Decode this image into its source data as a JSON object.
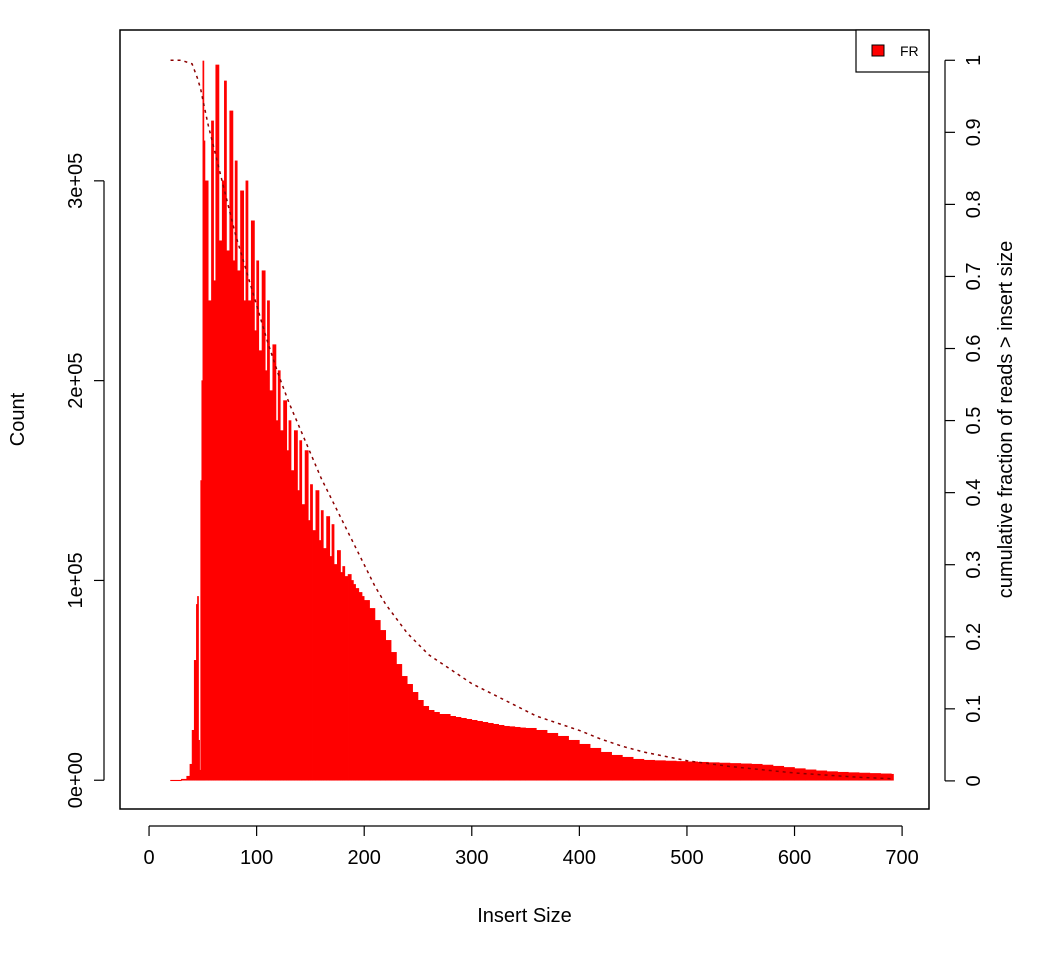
{
  "chart_data": {
    "type": "bar",
    "xlabel": "Insert Size",
    "ylabel": "Count",
    "y2label": "cumulative fraction of reads > insert size",
    "xlim": [
      -27,
      725
    ],
    "ylim": [
      -14400,
      375500
    ],
    "y2lim": [
      -0.039,
      1.042
    ],
    "xticks": [
      0,
      100,
      200,
      300,
      400,
      500,
      600,
      700
    ],
    "yticks": [
      0,
      100000,
      200000,
      300000
    ],
    "ytick_labels": [
      "0e+00",
      "1e+05",
      "2e+05",
      "3e+05"
    ],
    "y2ticks": [
      0,
      0.1,
      0.2,
      0.3,
      0.4,
      0.5,
      0.6,
      0.7,
      0.8,
      0.9,
      1
    ],
    "y2tick_labels": [
      "0",
      "0.1",
      "0.2",
      "0.3",
      "0.4",
      "0.5",
      "0.6",
      "0.7",
      "0.8",
      "0.9",
      "1"
    ],
    "legend": {
      "label": "FR",
      "color": "#ff0000",
      "position": "top-right"
    },
    "histogram": {
      "name": "FR",
      "color": "#ff0000",
      "x": [
        20,
        30,
        35,
        38,
        40,
        42,
        44,
        45,
        46,
        47,
        48,
        49,
        50,
        51,
        52,
        55,
        58,
        60,
        62,
        65,
        68,
        70,
        72,
        75,
        78,
        80,
        82,
        85,
        88,
        90,
        92,
        95,
        98,
        100,
        102,
        105,
        108,
        110,
        112,
        115,
        118,
        120,
        122,
        125,
        128,
        130,
        132,
        135,
        138,
        140,
        142,
        145,
        148,
        150,
        152,
        155,
        158,
        160,
        162,
        165,
        168,
        170,
        172,
        175,
        178,
        180,
        182,
        185,
        188,
        190,
        192,
        195,
        198,
        200,
        205,
        210,
        215,
        220,
        225,
        230,
        235,
        240,
        245,
        250,
        255,
        260,
        265,
        270,
        275,
        280,
        285,
        290,
        295,
        300,
        305,
        310,
        315,
        320,
        325,
        330,
        335,
        340,
        345,
        350,
        360,
        370,
        380,
        390,
        400,
        410,
        420,
        430,
        440,
        450,
        460,
        470,
        480,
        490,
        500,
        510,
        520,
        530,
        540,
        550,
        560,
        570,
        580,
        590,
        600,
        610,
        620,
        630,
        640,
        650,
        660,
        670,
        680,
        690
      ],
      "values": [
        0,
        500,
        2000,
        8000,
        25000,
        60000,
        88000,
        92000,
        20000,
        5000,
        150000,
        200000,
        360000,
        320000,
        300000,
        240000,
        330000,
        250000,
        358000,
        270000,
        300000,
        350000,
        265000,
        335000,
        260000,
        310000,
        255000,
        295000,
        240000,
        300000,
        240000,
        280000,
        225000,
        260000,
        215000,
        255000,
        205000,
        240000,
        195000,
        218000,
        180000,
        205000,
        175000,
        190000,
        165000,
        180000,
        155000,
        175000,
        145000,
        170000,
        138000,
        165000,
        130000,
        148000,
        125000,
        145000,
        120000,
        135000,
        116000,
        132000,
        112000,
        128000,
        108000,
        115000,
        104000,
        107000,
        102000,
        103000,
        100000,
        98000,
        96000,
        94000,
        92000,
        90000,
        86000,
        80000,
        75000,
        70000,
        64000,
        58000,
        52000,
        48000,
        44000,
        40000,
        37000,
        35000,
        34000,
        33000,
        33000,
        32000,
        31500,
        31000,
        30500,
        30000,
        29500,
        29000,
        28500,
        28000,
        27500,
        27000,
        26800,
        26500,
        26200,
        26000,
        25000,
        23500,
        22000,
        20000,
        18000,
        16000,
        14000,
        12500,
        11500,
        10500,
        10000,
        9800,
        9600,
        9400,
        9200,
        9000,
        8800,
        8600,
        8400,
        8200,
        8000,
        7600,
        7000,
        6400,
        5800,
        5200,
        4700,
        4300,
        4000,
        3800,
        3600,
        3400,
        3200,
        3000
      ]
    },
    "cumulative": {
      "name": "cumulative fraction of reads > insert size",
      "color": "#8b0000",
      "style": "dotted",
      "x": [
        20,
        30,
        40,
        45,
        48,
        50,
        55,
        60,
        70,
        80,
        90,
        100,
        110,
        120,
        130,
        140,
        150,
        160,
        170,
        180,
        190,
        200,
        210,
        220,
        230,
        240,
        250,
        260,
        270,
        280,
        290,
        300,
        320,
        340,
        360,
        380,
        400,
        420,
        440,
        460,
        480,
        500,
        520,
        540,
        560,
        580,
        600,
        620,
        640,
        660,
        690
      ],
      "values": [
        1.0,
        1.0,
        0.995,
        0.975,
        0.96,
        0.945,
        0.91,
        0.88,
        0.82,
        0.76,
        0.71,
        0.66,
        0.61,
        0.565,
        0.525,
        0.49,
        0.455,
        0.42,
        0.39,
        0.36,
        0.33,
        0.3,
        0.27,
        0.245,
        0.225,
        0.205,
        0.19,
        0.175,
        0.165,
        0.155,
        0.145,
        0.135,
        0.12,
        0.105,
        0.09,
        0.08,
        0.07,
        0.058,
        0.048,
        0.04,
        0.034,
        0.028,
        0.024,
        0.02,
        0.017,
        0.014,
        0.011,
        0.009,
        0.007,
        0.005,
        0.003
      ]
    }
  }
}
